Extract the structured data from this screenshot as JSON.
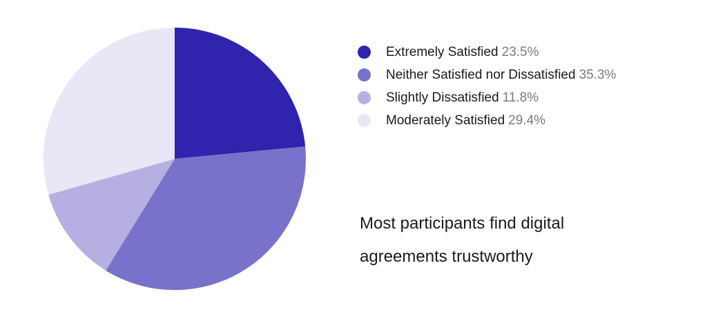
{
  "chart_data": {
    "type": "pie",
    "slices": [
      {
        "label": "Extremely Satisfied",
        "value": 23.5,
        "display": "23.5%",
        "color": "#3023ad"
      },
      {
        "label": "Neither Satisfied nor Dissatisfied",
        "value": 35.3,
        "display": "35.3%",
        "color": "#7872cb"
      },
      {
        "label": "Slightly Dissatisfied",
        "value": 11.8,
        "display": "11.8%",
        "color": "#b6b0e2"
      },
      {
        "label": "Moderately Satisfied",
        "value": 29.4,
        "display": "29.4%",
        "color": "#e8e7f5"
      }
    ],
    "legend_position": "right"
  },
  "caption": "Most participants find digital agreements trustworthy"
}
